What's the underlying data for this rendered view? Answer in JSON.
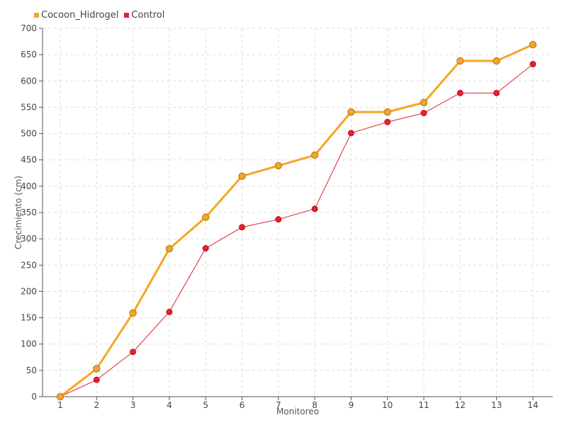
{
  "chart_data": {
    "type": "line",
    "xlabel": "Monitoreo",
    "ylabel": "Crecimiento (cm)",
    "categories": [
      "1",
      "2",
      "3",
      "4",
      "5",
      "6",
      "7",
      "8",
      "9",
      "10",
      "11",
      "12",
      "13",
      "14"
    ],
    "ylim": [
      0,
      700
    ],
    "yticks": [
      0,
      50,
      100,
      150,
      200,
      250,
      300,
      350,
      400,
      450,
      500,
      550,
      600,
      650,
      700
    ],
    "grid": true,
    "legend_position": "top-left",
    "series": [
      {
        "name": "Cocoon_Hidrogel",
        "color": "#f5a623",
        "marker_fill": "#f0a830",
        "marker_stroke": "#c8841a",
        "values": [
          0,
          53,
          159,
          281,
          341,
          419,
          439,
          459,
          541,
          541,
          559,
          638,
          638,
          669
        ]
      },
      {
        "name": "Control",
        "color": "#e3212e",
        "marker_fill": "#e3212e",
        "marker_stroke": "#c0101c",
        "values": [
          0,
          32,
          85,
          161,
          282,
          322,
          337,
          357,
          501,
          522,
          539,
          577,
          577,
          632
        ]
      }
    ]
  }
}
